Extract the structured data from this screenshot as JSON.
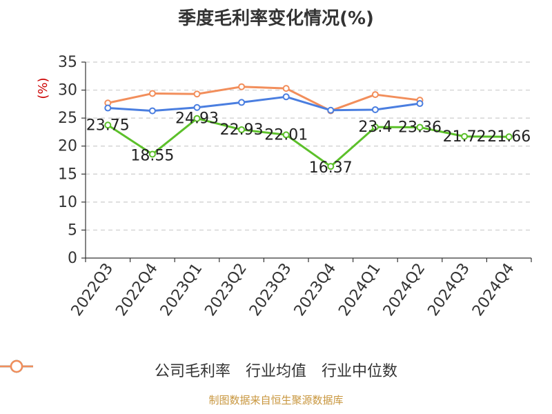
{
  "chart_data": {
    "type": "line",
    "title": "季度毛利率变化情况(%)",
    "ylabel": "(%)",
    "xlabel": "",
    "ylim": [
      0,
      35
    ],
    "yticks": [
      0,
      5,
      10,
      15,
      20,
      25,
      30,
      35
    ],
    "categories": [
      "2022Q3",
      "2022Q4",
      "2023Q1",
      "2023Q2",
      "2023Q3",
      "2023Q4",
      "2024Q1",
      "2024Q2",
      "2024Q3",
      "2024Q4"
    ],
    "grid": true,
    "legend_position": "bottom",
    "series": [
      {
        "name": "公司毛利率",
        "color": "#5cc02a",
        "values": [
          23.75,
          18.55,
          24.93,
          22.93,
          22.01,
          16.37,
          23.4,
          23.36,
          21.72,
          21.66
        ],
        "labels": [
          "23.75",
          "18.55",
          "24.93",
          "22.93",
          "22.01",
          "16.37",
          "23.4",
          "23.36",
          "21.72",
          "21.66"
        ]
      },
      {
        "name": "行业均值",
        "color": "#4a7ee0",
        "values": [
          26.8,
          26.3,
          26.9,
          27.8,
          28.8,
          26.4,
          26.5,
          27.6,
          null,
          null
        ]
      },
      {
        "name": "行业中位数",
        "color": "#f28e5b",
        "values": [
          27.7,
          29.4,
          29.3,
          30.6,
          30.3,
          26.3,
          29.2,
          28.2,
          null,
          null
        ]
      }
    ]
  },
  "source": "制图数据来自恒生聚源数据库"
}
